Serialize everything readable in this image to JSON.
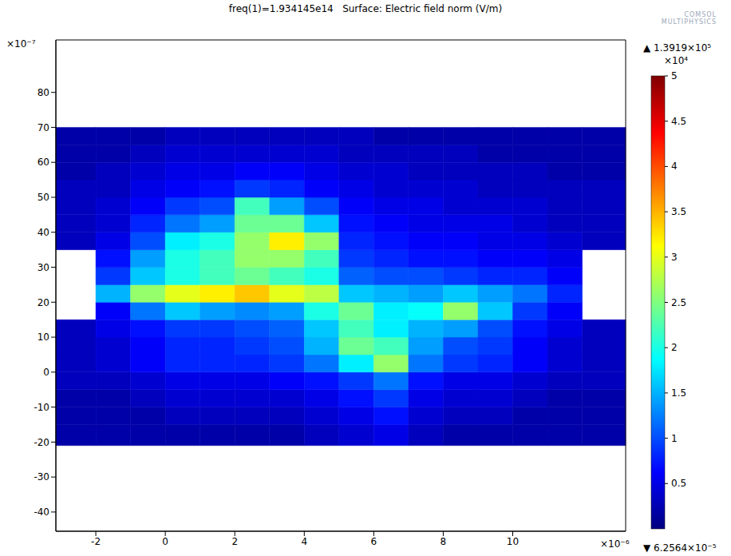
{
  "chart_data": {
    "type": "heatmap",
    "title": "freq(1)=1.934145e14   Surface: Electric field norm (V/m)",
    "logo": "COMSOL MULTIPHYSICS",
    "xlim": [
      -3.15,
      13.25
    ],
    "xticks": [
      -2,
      0,
      2,
      4,
      6,
      8,
      10
    ],
    "x_multiplier": "×10⁻⁶",
    "ylim": [
      -45.5,
      95
    ],
    "yticks": [
      -40,
      -30,
      -20,
      -10,
      0,
      10,
      20,
      30,
      40,
      50,
      60,
      70,
      80
    ],
    "y_multiplier": "×10⁻⁷",
    "x_edges": [
      -3.15,
      -2,
      -1,
      0,
      1,
      2,
      3,
      4,
      5,
      6,
      7,
      8,
      9,
      10,
      11,
      12,
      13.25
    ],
    "y_edges": [
      -21,
      -15,
      -10,
      -5,
      0,
      5,
      10,
      15,
      20,
      25,
      30,
      35,
      40,
      45,
      50,
      55,
      60,
      65,
      70
    ],
    "cells": [
      [
        0.2,
        0.2,
        0.2,
        0.2,
        0.2,
        0.2,
        0.2,
        0.3,
        0.4,
        0.5,
        0.3,
        0.2,
        0.2,
        0.2,
        0.2,
        0.2
      ],
      [
        0.2,
        0.2,
        0.2,
        0.3,
        0.3,
        0.3,
        0.3,
        0.4,
        0.5,
        0.7,
        0.4,
        0.3,
        0.3,
        0.2,
        0.2,
        0.2
      ],
      [
        0.2,
        0.2,
        0.3,
        0.4,
        0.4,
        0.4,
        0.4,
        0.5,
        0.7,
        0.9,
        0.5,
        0.4,
        0.4,
        0.3,
        0.2,
        0.2
      ],
      [
        0.3,
        0.3,
        0.4,
        0.5,
        0.5,
        0.5,
        0.6,
        0.7,
        0.9,
        1.2,
        0.7,
        0.5,
        0.5,
        0.4,
        0.3,
        0.3
      ],
      [
        0.3,
        0.4,
        0.6,
        0.8,
        0.8,
        0.8,
        0.9,
        1.2,
        1.8,
        2.6,
        1.2,
        0.9,
        0.8,
        0.6,
        0.4,
        0.3
      ],
      [
        0.3,
        0.4,
        0.6,
        0.8,
        0.8,
        0.9,
        1.0,
        1.5,
        2.4,
        2.2,
        1.4,
        1.0,
        0.9,
        0.6,
        0.4,
        0.3
      ],
      [
        0.3,
        0.5,
        0.7,
        0.9,
        0.9,
        1.0,
        1.1,
        1.6,
        2.2,
        1.8,
        1.5,
        1.4,
        1.0,
        0.7,
        0.5,
        0.3
      ],
      [
        null,
        0.6,
        1.2,
        1.6,
        1.4,
        1.3,
        1.4,
        2.0,
        2.4,
        1.8,
        1.9,
        2.6,
        1.6,
        0.9,
        0.6,
        null
      ],
      [
        null,
        1.5,
        2.6,
        3.0,
        3.2,
        3.4,
        3.0,
        2.8,
        1.6,
        1.5,
        1.4,
        1.6,
        1.4,
        1.2,
        0.8,
        null
      ],
      [
        null,
        0.9,
        1.6,
        2.0,
        2.2,
        2.4,
        2.2,
        2.0,
        1.1,
        1.0,
        1.0,
        0.9,
        0.8,
        0.8,
        0.6,
        null
      ],
      [
        null,
        0.7,
        1.4,
        2.0,
        2.2,
        2.6,
        2.6,
        2.2,
        0.9,
        0.8,
        0.7,
        0.7,
        0.6,
        0.6,
        0.5,
        null
      ],
      [
        0.3,
        0.5,
        1.0,
        1.8,
        2.0,
        2.6,
        3.2,
        2.6,
        0.8,
        0.7,
        0.6,
        0.6,
        0.5,
        0.5,
        0.4,
        0.3
      ],
      [
        0.3,
        0.4,
        0.8,
        1.2,
        1.4,
        2.4,
        2.4,
        1.6,
        0.7,
        0.6,
        0.5,
        0.5,
        0.5,
        0.4,
        0.3,
        0.3
      ],
      [
        0.3,
        0.4,
        0.6,
        0.9,
        1.0,
        2.2,
        1.4,
        1.0,
        0.6,
        0.5,
        0.5,
        0.4,
        0.4,
        0.4,
        0.3,
        0.3
      ],
      [
        0.3,
        0.3,
        0.5,
        0.6,
        0.7,
        0.9,
        0.8,
        0.6,
        0.5,
        0.4,
        0.4,
        0.4,
        0.3,
        0.3,
        0.3,
        0.3
      ],
      [
        0.2,
        0.3,
        0.4,
        0.5,
        0.5,
        0.6,
        0.6,
        0.5,
        0.4,
        0.4,
        0.3,
        0.3,
        0.3,
        0.3,
        0.2,
        0.2
      ],
      [
        0.2,
        0.2,
        0.3,
        0.4,
        0.4,
        0.4,
        0.4,
        0.4,
        0.3,
        0.3,
        0.3,
        0.3,
        0.2,
        0.2,
        0.2,
        0.2
      ],
      [
        0.2,
        0.2,
        0.2,
        0.3,
        0.3,
        0.3,
        0.3,
        0.3,
        0.3,
        0.2,
        0.2,
        0.2,
        0.2,
        0.2,
        0.2,
        0.2
      ]
    ],
    "colorbar": {
      "range": [
        0,
        5
      ],
      "ticks": [
        0.5,
        1,
        1.5,
        2,
        2.5,
        3,
        3.5,
        4,
        4.5,
        5
      ],
      "multiplier": "×10⁴",
      "max_label": "▲ 1.3919×10⁵",
      "min_label": "▼ 6.2564×10⁻⁵"
    }
  }
}
